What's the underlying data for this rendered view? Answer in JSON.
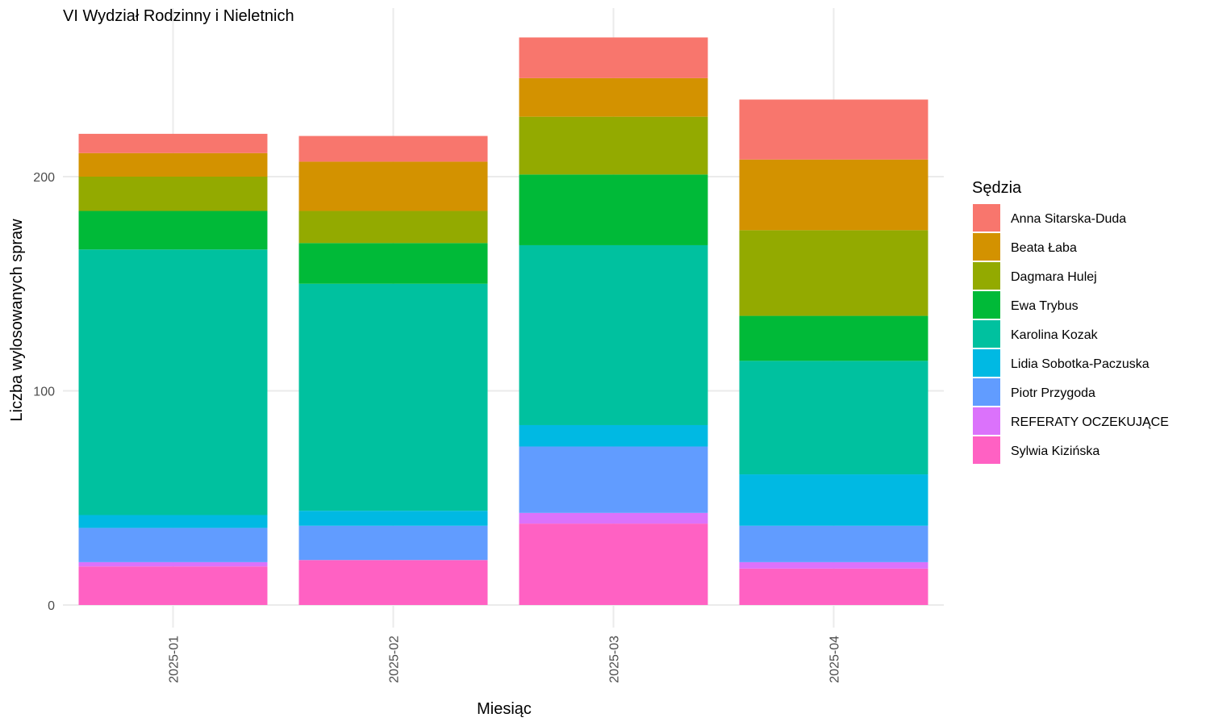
{
  "chart_data": {
    "type": "bar",
    "stacked": true,
    "title": "VI Wydział Rodzinny i Nieletnich",
    "xlabel": "Miesiąc",
    "ylabel": "Liczba wylosowanych spraw",
    "ylim": [
      0,
      278
    ],
    "yticks": [
      0,
      100,
      200
    ],
    "grid": true,
    "legend_title": "Sędzia",
    "legend_position": "right",
    "categories": [
      "2025-01",
      "2025-02",
      "2025-03",
      "2025-04"
    ],
    "series": [
      {
        "name": "Sylwia Kizińska",
        "color": "#FF61C3",
        "values": [
          18,
          21,
          38,
          17
        ]
      },
      {
        "name": "REFERATY OCZEKUJĄCE",
        "color": "#DB72FB",
        "values": [
          2,
          0,
          5,
          3
        ]
      },
      {
        "name": "Piotr Przygoda",
        "color": "#619CFF",
        "values": [
          16,
          16,
          31,
          17
        ]
      },
      {
        "name": "Lidia Sobotka-Paczuska",
        "color": "#00B9E3",
        "values": [
          6,
          7,
          10,
          24
        ]
      },
      {
        "name": "Karolina Kozak",
        "color": "#00C19F",
        "values": [
          124,
          106,
          84,
          53
        ]
      },
      {
        "name": "Ewa Trybus",
        "color": "#00BA38",
        "values": [
          18,
          19,
          33,
          21
        ]
      },
      {
        "name": "Dagmara Hulej",
        "color": "#93AA00",
        "values": [
          16,
          15,
          27,
          40
        ]
      },
      {
        "name": "Beata Łaba",
        "color": "#D39200",
        "values": [
          11,
          23,
          18,
          33
        ]
      },
      {
        "name": "Anna Sitarska-Duda",
        "color": "#F8766D",
        "values": [
          9,
          12,
          19,
          28
        ]
      }
    ],
    "legend_order": [
      "Anna Sitarska-Duda",
      "Beata Łaba",
      "Dagmara Hulej",
      "Ewa Trybus",
      "Karolina Kozak",
      "Lidia Sobotka-Paczuska",
      "Piotr Przygoda",
      "REFERATY OCZEKUJĄCE",
      "Sylwia Kizińska"
    ]
  }
}
